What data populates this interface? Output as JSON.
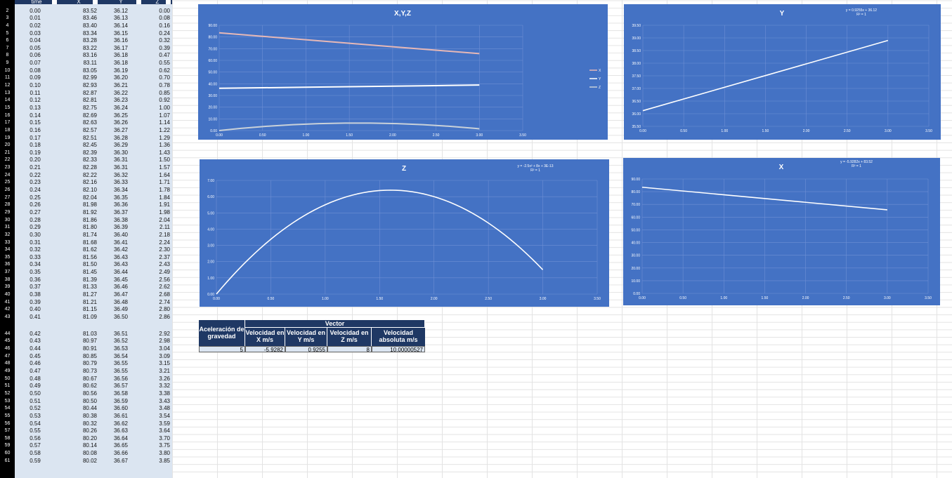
{
  "table": {
    "headers": [
      "time",
      "X",
      "Y",
      "Z"
    ],
    "row_numbers": [
      "2",
      "3",
      "4",
      "5",
      "6",
      "7",
      "8",
      "9",
      "10",
      "11",
      "12",
      "13",
      "14",
      "15",
      "16",
      "17",
      "18",
      "19",
      "20",
      "21",
      "22",
      "23",
      "24",
      "25",
      "26",
      "27",
      "28",
      "29",
      "30",
      "31",
      "32",
      "33",
      "34",
      "35",
      "36",
      "37",
      "38",
      "39",
      "40",
      "41",
      "42",
      "43",
      "44",
      "45",
      "46",
      "47",
      "48",
      "49",
      "50",
      "51",
      "52",
      "53",
      "54",
      "55",
      "56",
      "57",
      "58",
      "59",
      "60",
      "61"
    ],
    "rows": [
      [
        "0.00",
        "83.52",
        "36.12",
        "0.00"
      ],
      [
        "0.01",
        "83.46",
        "36.13",
        "0.08"
      ],
      [
        "0.02",
        "83.40",
        "36.14",
        "0.16"
      ],
      [
        "0.03",
        "83.34",
        "36.15",
        "0.24"
      ],
      [
        "0.04",
        "83.28",
        "36.16",
        "0.32"
      ],
      [
        "0.05",
        "83.22",
        "36.17",
        "0.39"
      ],
      [
        "0.06",
        "83.16",
        "36.18",
        "0.47"
      ],
      [
        "0.07",
        "83.11",
        "36.18",
        "0.55"
      ],
      [
        "0.08",
        "83.05",
        "36.19",
        "0.62"
      ],
      [
        "0.09",
        "82.99",
        "36.20",
        "0.70"
      ],
      [
        "0.10",
        "82.93",
        "36.21",
        "0.78"
      ],
      [
        "0.11",
        "82.87",
        "36.22",
        "0.85"
      ],
      [
        "0.12",
        "82.81",
        "36.23",
        "0.92"
      ],
      [
        "0.13",
        "82.75",
        "36.24",
        "1.00"
      ],
      [
        "0.14",
        "82.69",
        "36.25",
        "1.07"
      ],
      [
        "0.15",
        "82.63",
        "36.26",
        "1.14"
      ],
      [
        "0.16",
        "82.57",
        "36.27",
        "1.22"
      ],
      [
        "0.17",
        "82.51",
        "36.28",
        "1.29"
      ],
      [
        "0.18",
        "82.45",
        "36.29",
        "1.36"
      ],
      [
        "0.19",
        "82.39",
        "36.30",
        "1.43"
      ],
      [
        "0.20",
        "82.33",
        "36.31",
        "1.50"
      ],
      [
        "0.21",
        "82.28",
        "36.31",
        "1.57"
      ],
      [
        "0.22",
        "82.22",
        "36.32",
        "1.64"
      ],
      [
        "0.23",
        "82.16",
        "36.33",
        "1.71"
      ],
      [
        "0.24",
        "82.10",
        "36.34",
        "1.78"
      ],
      [
        "0.25",
        "82.04",
        "36.35",
        "1.84"
      ],
      [
        "0.26",
        "81.98",
        "36.36",
        "1.91"
      ],
      [
        "0.27",
        "81.92",
        "36.37",
        "1.98"
      ],
      [
        "0.28",
        "81.86",
        "36.38",
        "2.04"
      ],
      [
        "0.29",
        "81.80",
        "36.39",
        "2.11"
      ],
      [
        "0.30",
        "81.74",
        "36.40",
        "2.18"
      ],
      [
        "0.31",
        "81.68",
        "36.41",
        "2.24"
      ],
      [
        "0.32",
        "81.62",
        "36.42",
        "2.30"
      ],
      [
        "0.33",
        "81.56",
        "36.43",
        "2.37"
      ],
      [
        "0.34",
        "81.50",
        "36.43",
        "2.43"
      ],
      [
        "0.35",
        "81.45",
        "36.44",
        "2.49"
      ],
      [
        "0.36",
        "81.39",
        "36.45",
        "2.56"
      ],
      [
        "0.37",
        "81.33",
        "36.46",
        "2.62"
      ],
      [
        "0.38",
        "81.27",
        "36.47",
        "2.68"
      ],
      [
        "0.39",
        "81.21",
        "36.48",
        "2.74"
      ],
      [
        "0.40",
        "81.15",
        "36.49",
        "2.80"
      ],
      [
        "0.41",
        "81.09",
        "36.50",
        "2.86"
      ],
      [
        "0.42",
        "81.03",
        "36.51",
        "2.92"
      ],
      [
        "0.43",
        "80.97",
        "36.52",
        "2.98"
      ],
      [
        "0.44",
        "80.91",
        "36.53",
        "3.04"
      ],
      [
        "0.45",
        "80.85",
        "36.54",
        "3.09"
      ],
      [
        "0.46",
        "80.79",
        "36.55",
        "3.15"
      ],
      [
        "0.47",
        "80.73",
        "36.55",
        "3.21"
      ],
      [
        "0.48",
        "80.67",
        "36.56",
        "3.26"
      ],
      [
        "0.49",
        "80.62",
        "36.57",
        "3.32"
      ],
      [
        "0.50",
        "80.56",
        "36.58",
        "3.38"
      ],
      [
        "0.51",
        "80.50",
        "36.59",
        "3.43"
      ],
      [
        "0.52",
        "80.44",
        "36.60",
        "3.48"
      ],
      [
        "0.53",
        "80.38",
        "36.61",
        "3.54"
      ],
      [
        "0.54",
        "80.32",
        "36.62",
        "3.59"
      ],
      [
        "0.55",
        "80.26",
        "36.63",
        "3.64"
      ],
      [
        "0.56",
        "80.20",
        "36.64",
        "3.70"
      ],
      [
        "0.57",
        "80.14",
        "36.65",
        "3.75"
      ],
      [
        "0.58",
        "80.08",
        "36.66",
        "3.80"
      ],
      [
        "0.59",
        "80.02",
        "36.67",
        "3.85"
      ]
    ]
  },
  "results": {
    "headers": [
      "Aceleración de gravedad",
      "Velocidad en X m/s",
      "Velocidad en Y m/s",
      "Velocidad en Z m/s",
      "Velocidad absoluta m/s"
    ],
    "group_header": "Vector",
    "values": [
      "5",
      "-5.9282",
      "0.9255",
      "8",
      "10.00000527"
    ]
  },
  "colors": {
    "chart_bg": "#4472c4",
    "header_bg": "#1f3864",
    "table_bg": "#dbe5f1",
    "line": "#ffffff",
    "x_line": "#e6b8b7",
    "z_line": "#c9d1d9"
  },
  "chart_data": [
    {
      "type": "line",
      "title": "X,Y,Z",
      "x": [
        0,
        0.5,
        1,
        1.5,
        2,
        2.5,
        3
      ],
      "series": [
        {
          "name": "X",
          "values": [
            83.52,
            80.56,
            77.6,
            74.63,
            71.66,
            68.7,
            65.74
          ]
        },
        {
          "name": "Y",
          "values": [
            36.12,
            36.58,
            37.05,
            37.51,
            37.97,
            38.43,
            38.9
          ]
        },
        {
          "name": "Z",
          "values": [
            0.0,
            3.38,
            5.5,
            6.38,
            6.0,
            4.38,
            1.5
          ]
        }
      ],
      "xlim": [
        0,
        3.5
      ],
      "ylim": [
        0,
        90
      ],
      "xticks": [
        "0.00",
        "0.50",
        "1.00",
        "1.50",
        "2.00",
        "2.50",
        "3.00",
        "3.50"
      ],
      "yticks": [
        "0.00",
        "10.00",
        "20.00",
        "30.00",
        "40.00",
        "50.00",
        "60.00",
        "70.00",
        "80.00",
        "90.00"
      ],
      "legend": "right",
      "grid": true
    },
    {
      "type": "line",
      "title": "Y",
      "trendline": [
        "y = 0.9255x + 36.12",
        "R² = 1"
      ],
      "x": [
        0,
        3
      ],
      "series": [
        {
          "values": [
            36.12,
            38.9
          ]
        }
      ],
      "xlim": [
        0,
        3.5
      ],
      "ylim": [
        35.5,
        39.5
      ],
      "xticks": [
        "0.00",
        "0.50",
        "1.00",
        "1.50",
        "2.00",
        "2.50",
        "3.00",
        "3.50"
      ],
      "yticks": [
        "35.50",
        "36.00",
        "36.50",
        "37.00",
        "37.50",
        "38.00",
        "38.50",
        "39.00",
        "39.50"
      ],
      "grid": true
    },
    {
      "type": "line",
      "title": "Z",
      "trendline": [
        "y = -2.5x² + 8x + 3E-13",
        "R² = 1"
      ],
      "x": [
        0,
        0.25,
        0.5,
        0.75,
        1,
        1.25,
        1.5,
        1.75,
        2,
        2.25,
        2.5,
        2.75,
        3
      ],
      "series": [
        {
          "values": [
            0,
            1.84,
            3.38,
            4.59,
            5.5,
            6.09,
            6.38,
            6.34,
            6.0,
            5.34,
            4.38,
            3.09,
            1.5
          ]
        }
      ],
      "xlim": [
        0,
        3.5
      ],
      "ylim": [
        0,
        7
      ],
      "xticks": [
        "0.00",
        "0.50",
        "1.00",
        "1.50",
        "2.00",
        "2.50",
        "3.00",
        "3.50"
      ],
      "yticks": [
        "0.00",
        "1.00",
        "2.00",
        "3.00",
        "4.00",
        "5.00",
        "6.00",
        "7.00"
      ],
      "grid": true
    },
    {
      "type": "line",
      "title": "X",
      "trendline": [
        "y = -5.9282x + 83.52",
        "R² = 1"
      ],
      "x": [
        0,
        3
      ],
      "series": [
        {
          "values": [
            83.52,
            65.74
          ]
        }
      ],
      "xlim": [
        0,
        3.5
      ],
      "ylim": [
        0,
        90
      ],
      "xticks": [
        "0.00",
        "0.50",
        "1.00",
        "1.50",
        "2.00",
        "2.50",
        "3.00",
        "3.50"
      ],
      "yticks": [
        "0.00",
        "10.00",
        "20.00",
        "30.00",
        "40.00",
        "50.00",
        "60.00",
        "70.00",
        "80.00",
        "90.00"
      ],
      "grid": true
    }
  ]
}
